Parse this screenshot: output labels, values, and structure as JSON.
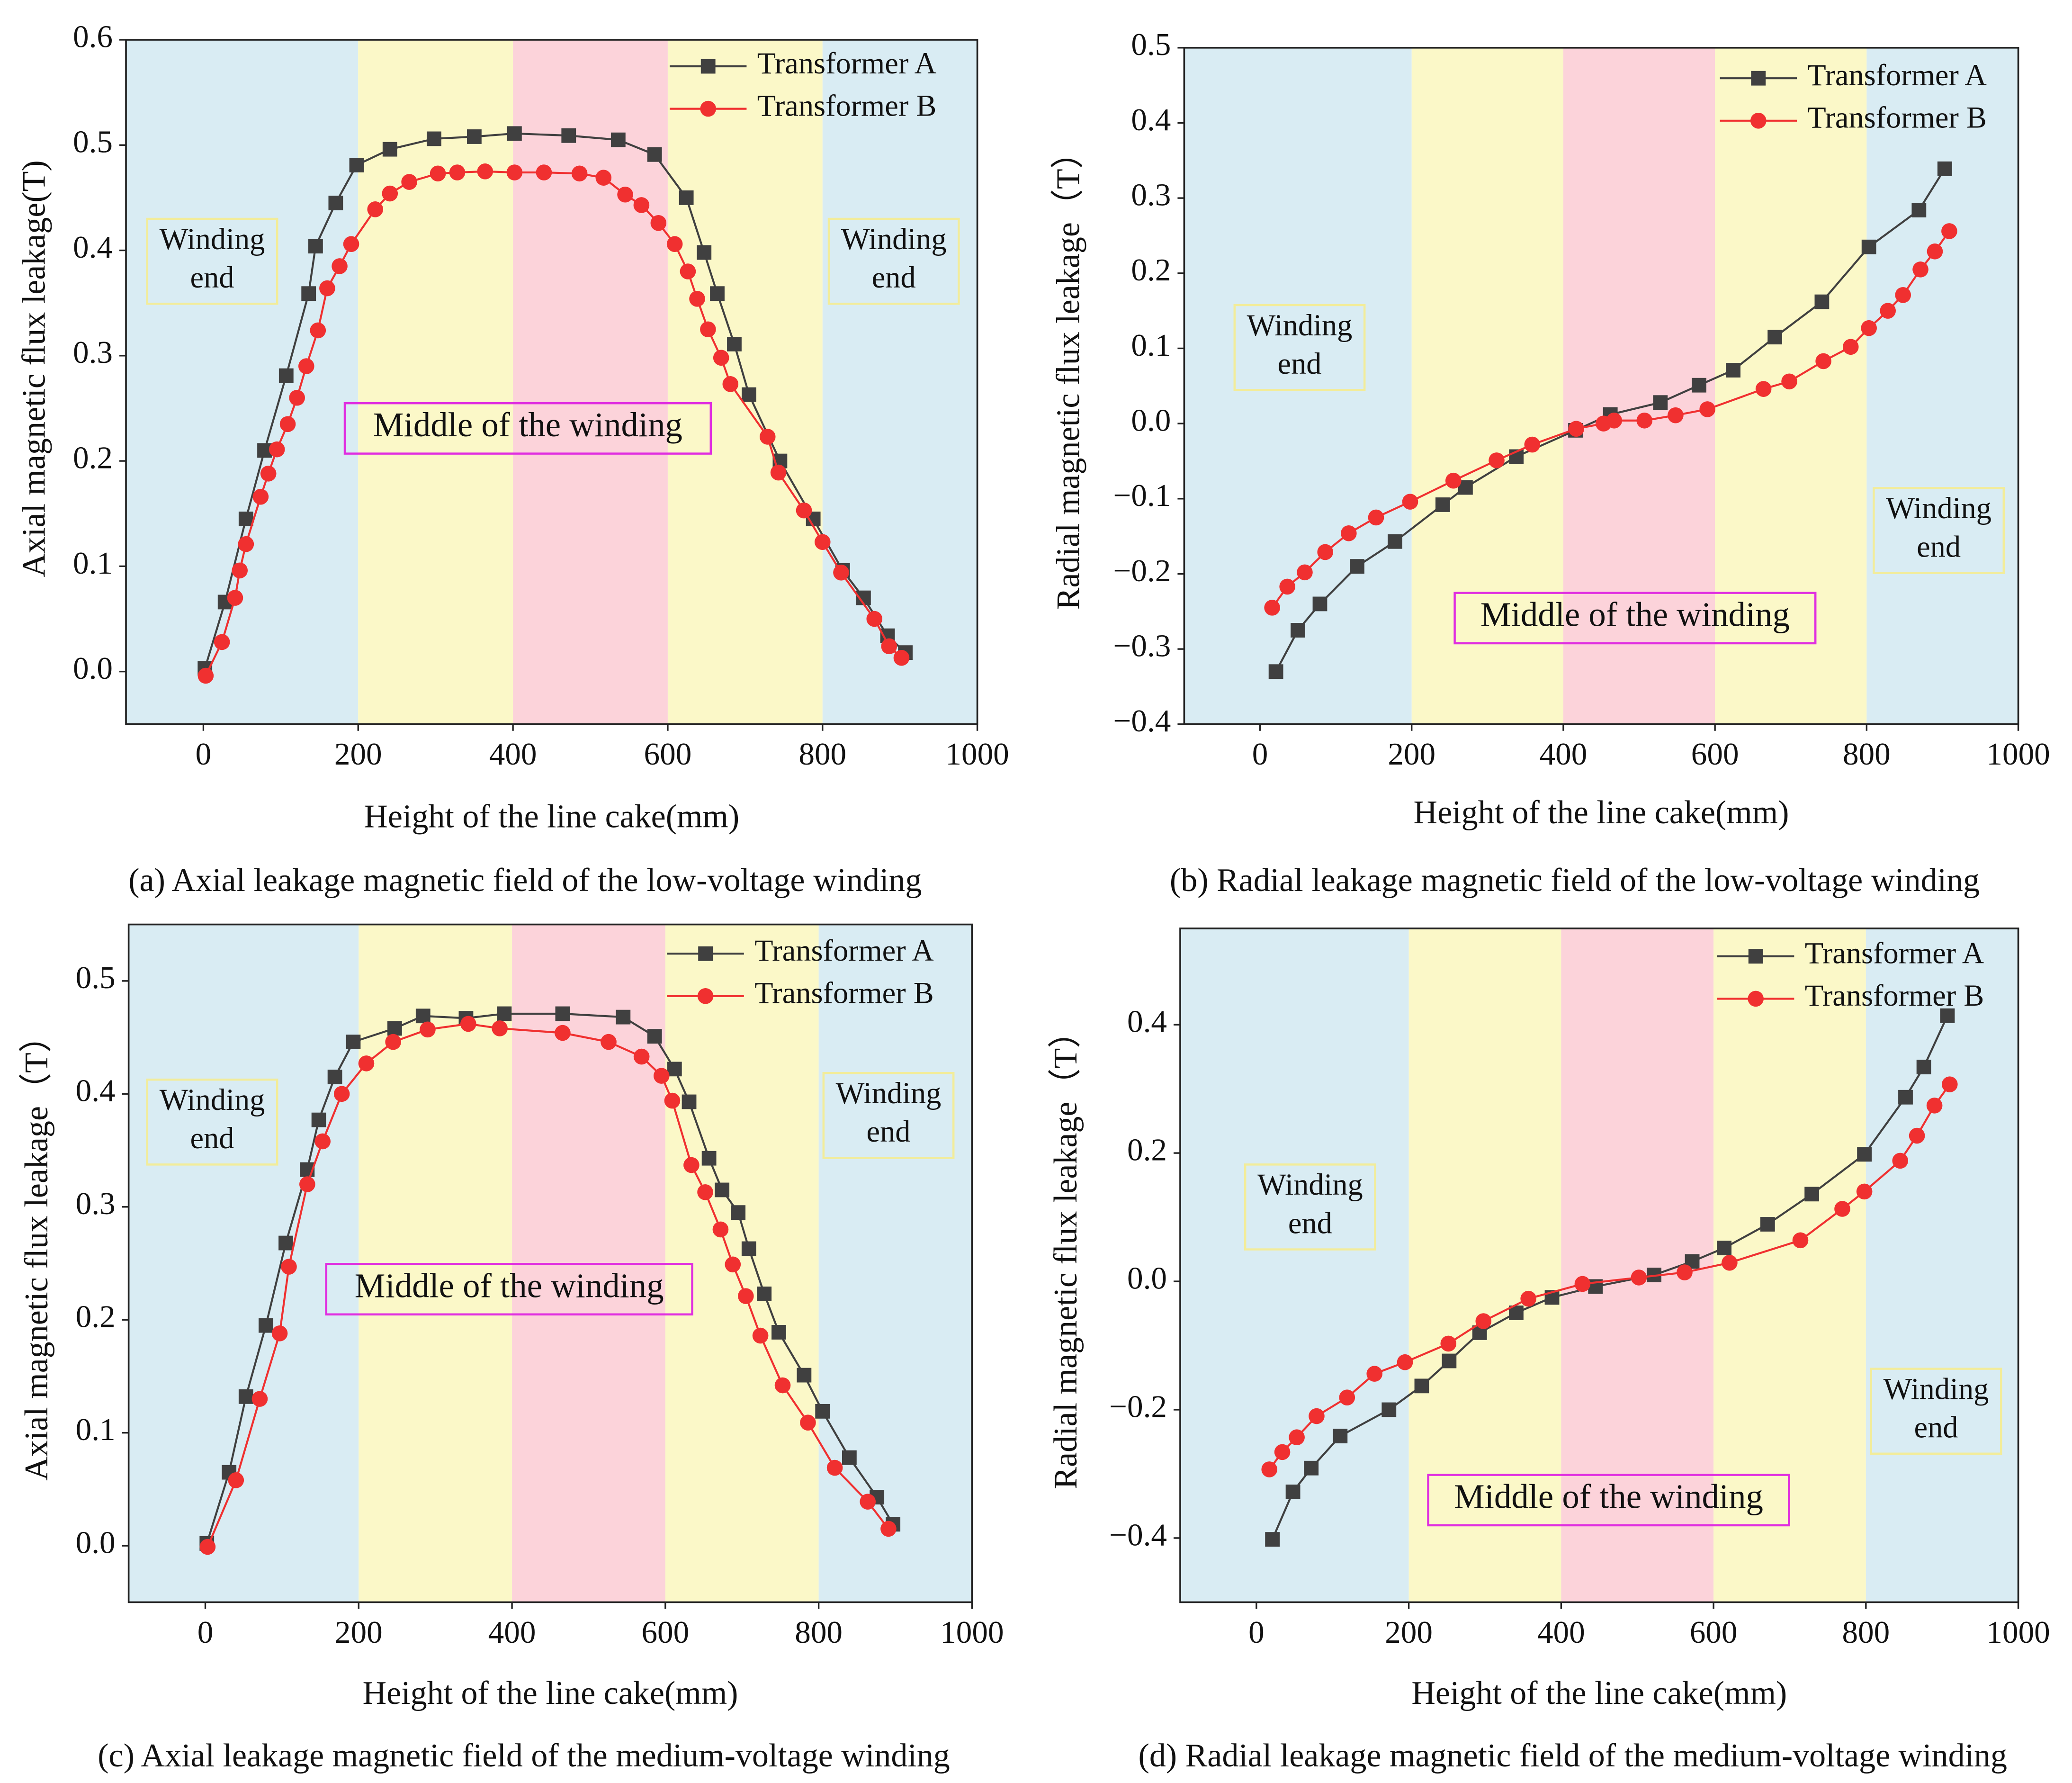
{
  "chart_data": [
    {
      "type": "line",
      "caption": "(a) Axial leakage magnetic field of the low-voltage winding",
      "xlabel": "Height of the line cake(mm)",
      "ylabel": "Axial magnetic flux leakage(T)",
      "xlim": [
        -100,
        1000
      ],
      "ylim": [
        -0.05,
        0.6
      ],
      "xticks": [
        0,
        200,
        400,
        600,
        800,
        1000
      ],
      "yticks": [
        {
          "value": 0,
          "label": "0.0"
        },
        0.1,
        0.2,
        0.3,
        0.4,
        0.5,
        0.6
      ],
      "regions": [
        {
          "start": -100,
          "end": 200,
          "color": "#d9ecf3"
        },
        {
          "start": 200,
          "end": 400,
          "color": "#fbf8c8"
        },
        {
          "start": 400,
          "end": 600,
          "color": "#fcd3da"
        },
        {
          "start": 600,
          "end": 800,
          "color": "#fbf8c8"
        },
        {
          "start": 800,
          "end": 1000,
          "color": "#d9ecf3"
        }
      ],
      "annotations": [
        {
          "lines": [
            "Winding",
            "end"
          ]
        },
        {
          "lines": [
            "Winding",
            "end"
          ]
        },
        {
          "lines": [
            "Middle of the winding"
          ]
        }
      ],
      "series": [
        {
          "name": "Transformer A",
          "color": "#404040",
          "marker": "square",
          "x": [
            2,
            28,
            55,
            79,
            107,
            136,
            145,
            171,
            198,
            241,
            298,
            350,
            402,
            472,
            536,
            583,
            624,
            647,
            664,
            686,
            705,
            745,
            788,
            826,
            853,
            884,
            907
          ],
          "values": [
            0.003,
            0.066,
            0.145,
            0.21,
            0.281,
            0.359,
            0.404,
            0.445,
            0.481,
            0.496,
            0.506,
            0.508,
            0.511,
            0.509,
            0.505,
            0.491,
            0.45,
            0.398,
            0.359,
            0.311,
            0.263,
            0.2,
            0.145,
            0.096,
            0.07,
            0.034,
            0.018
          ]
        },
        {
          "name": "Transformer B",
          "color": "#f03030",
          "marker": "circle",
          "x": [
            3,
            24,
            41,
            47,
            55,
            74,
            84,
            95,
            109,
            121,
            133,
            148,
            160,
            176,
            191,
            222,
            241,
            266,
            303,
            328,
            364,
            402,
            440,
            486,
            517,
            545,
            566,
            588,
            609,
            626,
            638,
            652,
            669,
            681,
            729,
            743,
            776,
            800,
            824,
            867,
            886,
            902
          ],
          "values": [
            -0.004,
            0.028,
            0.07,
            0.096,
            0.121,
            0.166,
            0.188,
            0.211,
            0.235,
            0.26,
            0.29,
            0.324,
            0.364,
            0.385,
            0.406,
            0.439,
            0.454,
            0.465,
            0.473,
            0.474,
            0.475,
            0.474,
            0.474,
            0.473,
            0.469,
            0.453,
            0.443,
            0.426,
            0.406,
            0.38,
            0.354,
            0.325,
            0.298,
            0.273,
            0.223,
            0.189,
            0.153,
            0.123,
            0.094,
            0.05,
            0.024,
            0.013
          ]
        }
      ]
    },
    {
      "type": "line",
      "caption": "(b) Radial leakage magnetic field of the low-voltage winding",
      "xlabel": "Height of the line cake(mm)",
      "ylabel": "Radial magnetic flux leakage（T）",
      "xlim": [
        -100,
        1000
      ],
      "ylim": [
        -0.4,
        0.5
      ],
      "xticks": [
        0,
        200,
        400,
        600,
        800,
        1000
      ],
      "yticks": [
        {
          "value": -0.4,
          "label": "−0.4"
        },
        {
          "value": -0.3,
          "label": "−0.3"
        },
        {
          "value": -0.2,
          "label": "−0.2"
        },
        {
          "value": -0.1,
          "label": "−0.1"
        },
        {
          "value": 0,
          "label": "0.0"
        },
        0.1,
        0.2,
        0.3,
        0.4,
        0.5
      ],
      "regions": [
        {
          "start": -100,
          "end": 200,
          "color": "#d9ecf3"
        },
        {
          "start": 200,
          "end": 400,
          "color": "#fbf8c8"
        },
        {
          "start": 400,
          "end": 600,
          "color": "#fcd3da"
        },
        {
          "start": 600,
          "end": 800,
          "color": "#fbf8c8"
        },
        {
          "start": 800,
          "end": 1000,
          "color": "#d9ecf3"
        }
      ],
      "annotations": [
        {
          "lines": [
            "Winding",
            "end"
          ]
        },
        {
          "lines": [
            "Winding",
            "end"
          ]
        },
        {
          "lines": [
            "Middle of the winding"
          ]
        }
      ],
      "series": [
        {
          "name": "Transformer A",
          "color": "#404040",
          "marker": "square",
          "x": [
            21,
            50,
            79,
            128,
            178,
            241,
            271,
            338,
            416,
            462,
            528,
            579,
            624,
            679,
            741,
            803,
            869,
            903
          ],
          "values": [
            -0.33,
            -0.275,
            -0.24,
            -0.19,
            -0.157,
            -0.108,
            -0.085,
            -0.044,
            -0.009,
            0.012,
            0.028,
            0.051,
            0.071,
            0.115,
            0.162,
            0.235,
            0.284,
            0.339
          ]
        },
        {
          "name": "Transformer B",
          "color": "#f03030",
          "marker": "circle",
          "x": [
            16,
            36,
            59,
            86,
            117,
            153,
            198,
            255,
            312,
            359,
            417,
            453,
            467,
            507,
            548,
            590,
            664,
            698,
            743,
            779,
            803,
            828,
            848,
            871,
            890,
            909
          ],
          "values": [
            -0.245,
            -0.217,
            -0.198,
            -0.171,
            -0.146,
            -0.125,
            -0.104,
            -0.076,
            -0.049,
            -0.028,
            -0.007,
            0.0,
            0.004,
            0.004,
            0.011,
            0.019,
            0.046,
            0.056,
            0.083,
            0.102,
            0.127,
            0.15,
            0.171,
            0.205,
            0.229,
            0.256
          ]
        }
      ]
    },
    {
      "type": "line",
      "caption": "(c) Axial leakage magnetic field of the medium-voltage winding",
      "xlabel": "Height of the line cake(mm)",
      "ylabel": "Axial magnetic flux leakage（T）",
      "xlim": [
        -100,
        1000
      ],
      "ylim": [
        -0.05,
        0.55
      ],
      "xticks": [
        0,
        200,
        400,
        600,
        800,
        1000
      ],
      "yticks": [
        {
          "value": 0,
          "label": "0.0"
        },
        0.1,
        0.2,
        0.3,
        0.4,
        0.5
      ],
      "regions": [
        {
          "start": -100,
          "end": 200,
          "color": "#d9ecf3"
        },
        {
          "start": 200,
          "end": 400,
          "color": "#fbf8c8"
        },
        {
          "start": 400,
          "end": 600,
          "color": "#fcd3da"
        },
        {
          "start": 600,
          "end": 800,
          "color": "#fbf8c8"
        },
        {
          "start": 800,
          "end": 1000,
          "color": "#d9ecf3"
        }
      ],
      "annotations": [
        {
          "lines": [
            "Winding",
            "end"
          ]
        },
        {
          "lines": [
            "Winding",
            "end"
          ]
        },
        {
          "lines": [
            "Middle of the winding"
          ]
        }
      ],
      "series": [
        {
          "name": "Transformer A",
          "color": "#404040",
          "marker": "square",
          "x": [
            2,
            31,
            53,
            79,
            105,
            133,
            148,
            169,
            193,
            247,
            284,
            340,
            390,
            466,
            545,
            586,
            612,
            631,
            657,
            674,
            695,
            709,
            729,
            748,
            781,
            805,
            840,
            876,
            897
          ],
          "values": [
            0.002,
            0.065,
            0.132,
            0.195,
            0.268,
            0.333,
            0.377,
            0.415,
            0.446,
            0.458,
            0.469,
            0.467,
            0.471,
            0.471,
            0.468,
            0.451,
            0.422,
            0.393,
            0.343,
            0.315,
            0.295,
            0.263,
            0.223,
            0.189,
            0.151,
            0.119,
            0.078,
            0.043,
            0.019
          ]
        },
        {
          "name": "Transformer B",
          "color": "#f03030",
          "marker": "circle",
          "x": [
            3,
            40,
            71,
            97,
            109,
            133,
            153,
            178,
            210,
            245,
            290,
            343,
            384,
            466,
            526,
            569,
            595,
            609,
            634,
            652,
            672,
            688,
            705,
            724,
            753,
            786,
            821,
            864,
            891
          ],
          "values": [
            -0.001,
            0.058,
            0.13,
            0.188,
            0.247,
            0.32,
            0.358,
            0.4,
            0.427,
            0.446,
            0.457,
            0.462,
            0.458,
            0.454,
            0.446,
            0.433,
            0.416,
            0.394,
            0.337,
            0.313,
            0.28,
            0.249,
            0.221,
            0.186,
            0.142,
            0.109,
            0.069,
            0.039,
            0.015
          ]
        }
      ]
    },
    {
      "type": "line",
      "caption": "(d) Radial leakage magnetic field of the medium-voltage winding",
      "xlabel": "Height of the line cake(mm)",
      "ylabel": "Radial magnetic flux leakage（T）",
      "xlim": [
        -100,
        1000
      ],
      "ylim": [
        -0.5,
        0.55
      ],
      "xticks": [
        0,
        200,
        400,
        600,
        800,
        1000
      ],
      "yticks": [
        {
          "value": -0.4,
          "label": "−0.4"
        },
        {
          "value": -0.2,
          "label": "−0.2"
        },
        {
          "value": 0,
          "label": "0.0"
        },
        0.2,
        0.4
      ],
      "regions": [
        {
          "start": -100,
          "end": 200,
          "color": "#d9ecf3"
        },
        {
          "start": 200,
          "end": 400,
          "color": "#fbf8c8"
        },
        {
          "start": 400,
          "end": 600,
          "color": "#fcd3da"
        },
        {
          "start": 600,
          "end": 800,
          "color": "#fbf8c8"
        },
        {
          "start": 800,
          "end": 1000,
          "color": "#d9ecf3"
        }
      ],
      "annotations": [
        {
          "lines": [
            "Winding",
            "end"
          ]
        },
        {
          "lines": [
            "Winding",
            "end"
          ]
        },
        {
          "lines": [
            "Middle of the winding"
          ]
        }
      ],
      "series": [
        {
          "name": "Transformer A",
          "color": "#404040",
          "marker": "square",
          "x": [
            21,
            48,
            72,
            110,
            174,
            217,
            253,
            293,
            341,
            388,
            445,
            522,
            572,
            614,
            671,
            729,
            798,
            852,
            876,
            907
          ],
          "values": [
            -0.402,
            -0.328,
            -0.291,
            -0.241,
            -0.2,
            -0.163,
            -0.124,
            -0.08,
            -0.049,
            -0.025,
            -0.008,
            0.01,
            0.031,
            0.052,
            0.089,
            0.136,
            0.198,
            0.287,
            0.334,
            0.414
          ]
        },
        {
          "name": "Transformer B",
          "color": "#f03030",
          "marker": "circle",
          "x": [
            17,
            34,
            53,
            79,
            119,
            155,
            195,
            252,
            298,
            357,
            428,
            502,
            562,
            621,
            714,
            769,
            798,
            845,
            867,
            890,
            910
          ],
          "values": [
            -0.293,
            -0.266,
            -0.243,
            -0.21,
            -0.181,
            -0.144,
            -0.126,
            -0.097,
            -0.062,
            -0.027,
            -0.004,
            0.006,
            0.014,
            0.029,
            0.064,
            0.113,
            0.14,
            0.188,
            0.227,
            0.274,
            0.307
          ]
        }
      ]
    }
  ]
}
